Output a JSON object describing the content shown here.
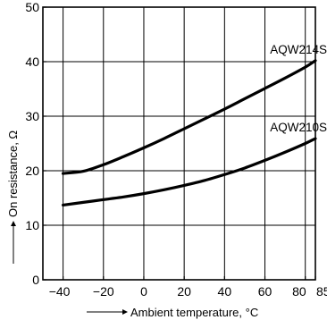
{
  "chart_data": {
    "type": "line",
    "xlabel": "Ambient temperature, °C",
    "ylabel": "On resistance, Ω",
    "xlim": [
      -50,
      85
    ],
    "ylim": [
      0,
      50
    ],
    "x_ticks": [
      -40,
      -20,
      0,
      20,
      40,
      60,
      80,
      85
    ],
    "x_tick_labels": [
      "−40",
      "−20",
      "0",
      "20",
      "40",
      "60",
      "80",
      "85"
    ],
    "y_ticks": [
      0,
      10,
      20,
      30,
      40,
      50
    ],
    "y_tick_labels": [
      "0",
      "10",
      "20",
      "30",
      "40",
      "50"
    ],
    "grid": true,
    "series": [
      {
        "name": "AQW214S",
        "x": [
          -40,
          -30,
          -20,
          -10,
          0,
          10,
          20,
          30,
          40,
          50,
          60,
          70,
          80,
          85
        ],
        "y": [
          19.5,
          19.9,
          21.1,
          22.6,
          24.2,
          25.9,
          27.7,
          29.5,
          31.3,
          33.2,
          35.1,
          37.0,
          39.0,
          40.2
        ]
      },
      {
        "name": "AQW210S",
        "x": [
          -40,
          -30,
          -20,
          -10,
          0,
          10,
          20,
          30,
          40,
          50,
          60,
          70,
          80,
          85
        ],
        "y": [
          13.7,
          14.2,
          14.7,
          15.2,
          15.8,
          16.5,
          17.3,
          18.2,
          19.3,
          20.5,
          21.9,
          23.4,
          25.0,
          25.9
        ]
      }
    ]
  }
}
